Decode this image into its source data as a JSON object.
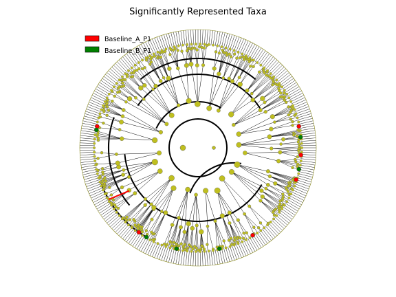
{
  "figure": {
    "title": "Significantly Represented Taxa",
    "legend": [
      {
        "label": "Baseline_A_P1",
        "color": "#ff0000"
      },
      {
        "label": "Baseline_B_P1",
        "color": "#008000"
      }
    ]
  },
  "cladogram": {
    "type": "circular-cladogram",
    "node_color": "#bfbf1f",
    "leaf_line_color": "#000000",
    "highlight_ring_color": "#000000",
    "outer_leaf_count": 300,
    "highlighted_leaves": [
      {
        "group": "Baseline_A_P1",
        "color": "#ff0000",
        "positions": [
          "right",
          "right",
          "right-lower",
          "lower-right",
          "left-lower",
          "left"
        ]
      },
      {
        "group": "Baseline_B_P1",
        "color": "#008000",
        "positions": [
          "right",
          "right-lower",
          "bottom",
          "bottom-left",
          "left-lower",
          "left"
        ]
      }
    ]
  }
}
